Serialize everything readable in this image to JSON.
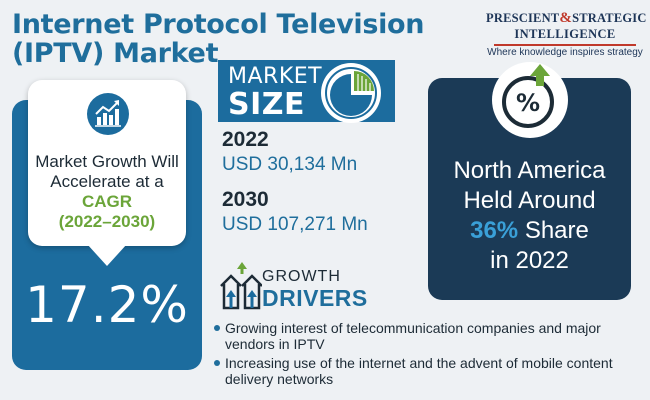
{
  "header": {
    "title": "Internet Protocol Television (IPTV) Market"
  },
  "brand": {
    "line1a": "PRESCIENT",
    "amp": "&",
    "line1b": "STRATEGIC",
    "line2": "INTELLIGENCE",
    "tagline": "Where knowledge inspires strategy",
    "accent_color": "#c0392b"
  },
  "cagr": {
    "text_pre": "Market Growth Will Accelerate at a",
    "highlight": "CAGR",
    "period": "(2022–2030)",
    "value": "17.2%",
    "icon": "growth-chart-icon",
    "highlight_color": "#6ba539"
  },
  "market_size": {
    "label_line1": "MARKET",
    "label_line2": "SIZE",
    "icon": "pie-chart-icon",
    "entries": [
      {
        "year": "2022",
        "value": "USD 30,134 Mn"
      },
      {
        "year": "2030",
        "value": "USD 107,271 Mn"
      }
    ]
  },
  "region": {
    "icon": "percent-up-icon",
    "line1": "North America",
    "line2": "Held Around",
    "share": "36%",
    "share_suffix": "Share",
    "line4": "in 2022",
    "highlight_color": "#3aa0d8"
  },
  "growth_drivers": {
    "label_line1": "GROWTH",
    "label_line2": "DRIVERS",
    "icon": "houses-arrows-icon",
    "items": [
      "Growing interest of telecommunication companies and major vendors in IPTV",
      "Increasing use of the internet and the advent of mobile content delivery networks"
    ]
  },
  "colors": {
    "primary_blue": "#1c6c9e",
    "dark_navy": "#1b3a56",
    "background": "#eef1f4"
  }
}
